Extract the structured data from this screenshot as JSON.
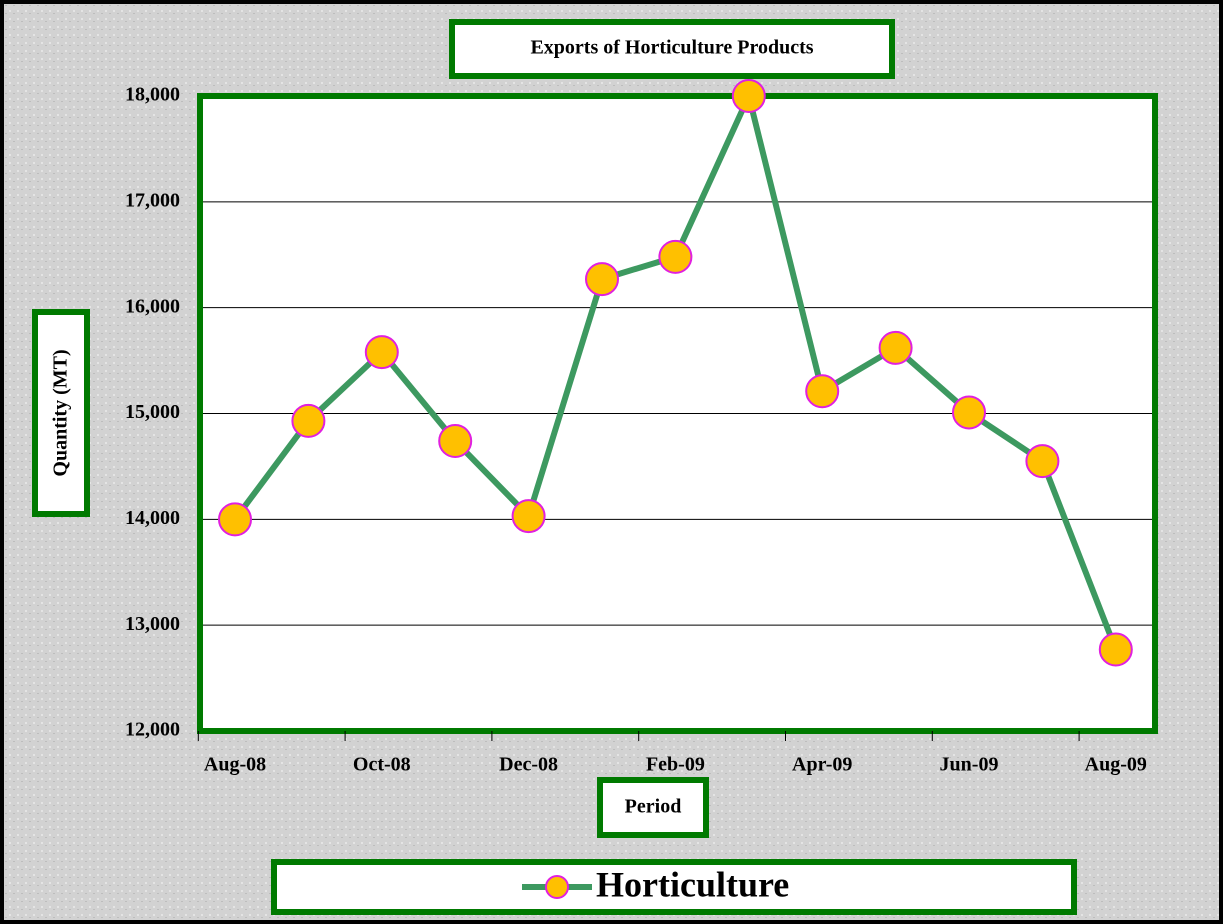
{
  "chart_data": {
    "type": "line",
    "title": "Exports of Horticulture Products",
    "x_label": "Period",
    "y_label": "Quantity (MT)",
    "categories": [
      "Aug-08",
      null,
      "Oct-08",
      null,
      "Dec-08",
      null,
      "Feb-09",
      null,
      "Apr-09",
      null,
      "Jun-09",
      null,
      "Aug-09"
    ],
    "series": [
      {
        "name": "Horticulture",
        "color": "#3d9960",
        "marker_fill": "#ffc000",
        "marker_edge": "#e020e0",
        "values": [
          14000,
          14930,
          15580,
          14740,
          14030,
          16270,
          16480,
          18000,
          15210,
          15620,
          15010,
          14550,
          12770
        ]
      }
    ],
    "ylim": [
      12000,
      18000
    ],
    "yticks": [
      {
        "value": 12000,
        "label": "12,000"
      },
      {
        "value": 13000,
        "label": "13,000"
      },
      {
        "value": 14000,
        "label": "14,000"
      },
      {
        "value": 15000,
        "label": "15,000"
      },
      {
        "value": 16000,
        "label": "16,000"
      },
      {
        "value": 17000,
        "label": "17,000"
      },
      {
        "value": 18000,
        "label": "18,000"
      }
    ],
    "grid": true,
    "legend": "bottom"
  }
}
